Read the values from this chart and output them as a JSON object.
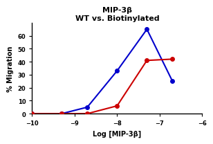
{
  "title_line1": "MIP-3β",
  "title_line2": "WT vs. Biotinylated",
  "xlabel": "Log [MIP-3β]",
  "ylabel": "% Migration",
  "xlim": [
    -10,
    -6
  ],
  "ylim": [
    0,
    70
  ],
  "yticks": [
    0,
    10,
    20,
    30,
    40,
    50,
    60
  ],
  "xticks": [
    -10,
    -9,
    -8,
    -7,
    -6
  ],
  "blue_x": [
    -10,
    -9.3,
    -8.7,
    -8.0,
    -7.3,
    -6.7
  ],
  "blue_y": [
    0,
    0,
    5,
    33,
    65,
    25
  ],
  "red_x": [
    -10,
    -9.3,
    -8.7,
    -8.0,
    -7.3,
    -6.7
  ],
  "red_y": [
    0,
    0,
    0,
    6,
    41,
    42
  ],
  "blue_color": "#0000cc",
  "red_color": "#cc0000",
  "marker_size": 4,
  "line_width": 1.5,
  "background_color": "#ffffff",
  "title_fontsize": 8,
  "label_fontsize": 7,
  "tick_fontsize": 6
}
